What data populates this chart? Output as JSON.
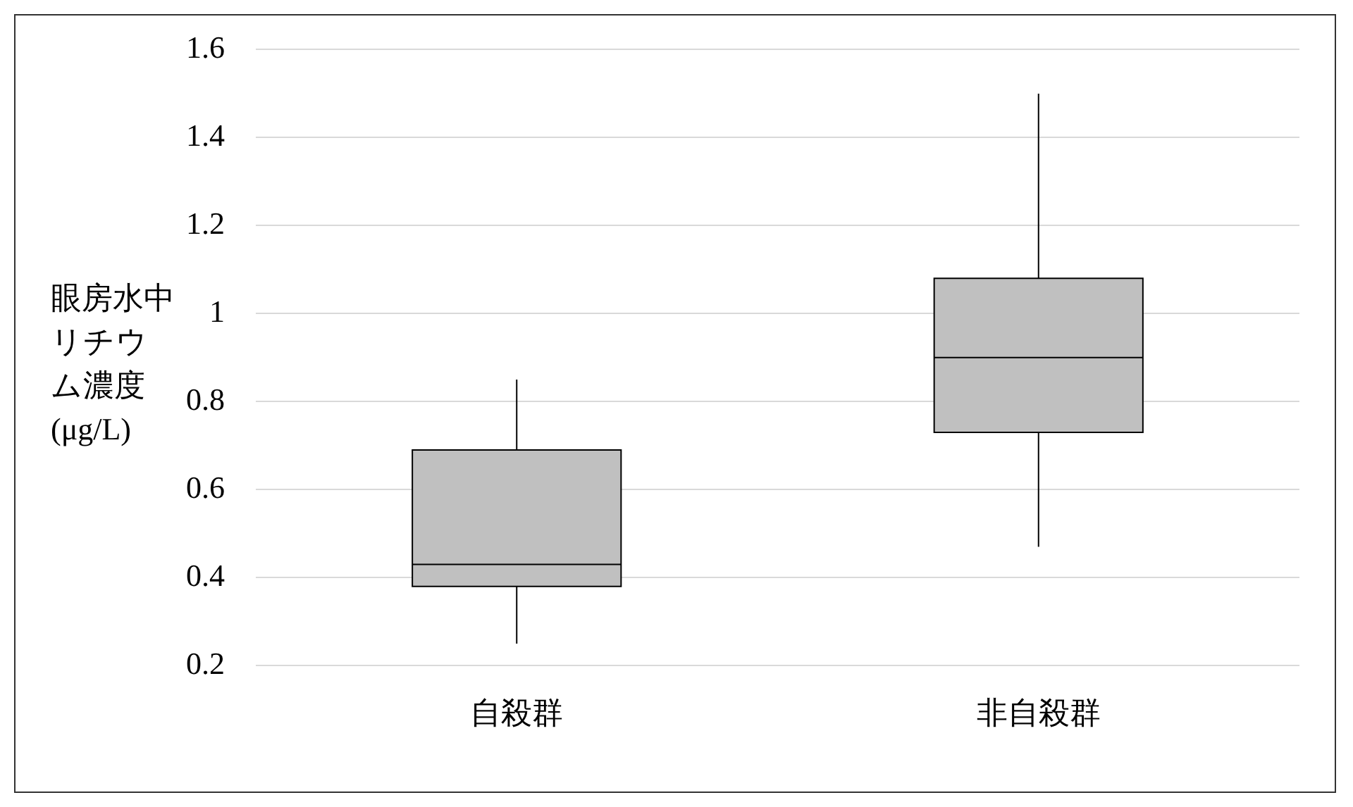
{
  "chart_data": {
    "type": "box",
    "ylabel": "眼房水中リチウム濃度(μg/L)",
    "categories": [
      "自殺群",
      "非自殺群"
    ],
    "color": "#c0c0c0",
    "boxes": [
      {
        "low": 0.25,
        "q1": 0.38,
        "median": 0.43,
        "q3": 0.69,
        "high": 0.85
      },
      {
        "low": 0.47,
        "q1": 0.73,
        "median": 0.9,
        "q3": 1.08,
        "high": 1.5
      }
    ],
    "ylim": [
      0.2,
      1.6
    ],
    "yticks": [
      0.2,
      0.4,
      0.6,
      0.8,
      1,
      1.2,
      1.4,
      1.6
    ],
    "grid": "y"
  }
}
